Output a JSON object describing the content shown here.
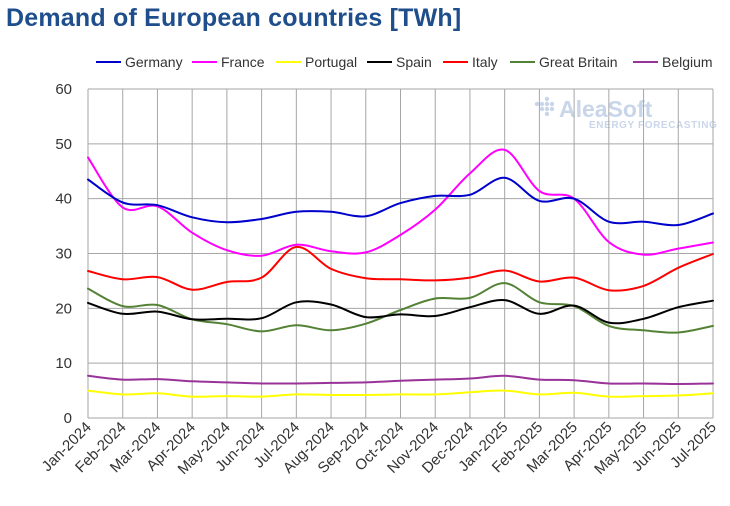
{
  "chart_data": {
    "type": "line",
    "title": "Demand of European countries [TWh]",
    "xlabel": "",
    "ylabel": "",
    "ylim": [
      0,
      60
    ],
    "yticks": [
      0,
      10,
      20,
      30,
      40,
      50,
      60
    ],
    "grid": true,
    "legend_position": "top",
    "categories": [
      "Jan-2024",
      "Feb-2024",
      "Mar-2024",
      "Apr-2024",
      "May-2024",
      "Jun-2024",
      "Jul-2024",
      "Aug-2024",
      "Sep-2024",
      "Oct-2024",
      "Nov-2024",
      "Dec-2024",
      "Jan-2025",
      "Feb-2025",
      "Mar-2025",
      "Apr-2025",
      "May-2025",
      "Jun-2025",
      "Jul-2025"
    ],
    "series": [
      {
        "name": "Germany",
        "color": "#0000cc",
        "values": [
          43.5,
          39.3,
          38.8,
          36.6,
          35.7,
          36.3,
          37.6,
          37.6,
          36.8,
          39.2,
          40.5,
          40.7,
          43.8,
          39.6,
          40.0,
          35.8,
          35.8,
          35.2,
          37.3
        ]
      },
      {
        "name": "France",
        "color": "#ff00ff",
        "values": [
          47.5,
          38.4,
          38.6,
          33.8,
          30.6,
          29.6,
          31.6,
          30.4,
          30.2,
          33.4,
          38.0,
          44.6,
          48.9,
          41.4,
          40.0,
          32.1,
          29.8,
          30.9,
          32.0
        ]
      },
      {
        "name": "Portugal",
        "color": "#ffff00",
        "values": [
          5.0,
          4.3,
          4.5,
          3.9,
          4.0,
          3.9,
          4.3,
          4.2,
          4.2,
          4.3,
          4.3,
          4.7,
          5.0,
          4.3,
          4.6,
          3.9,
          4.0,
          4.1,
          4.5
        ]
      },
      {
        "name": "Spain",
        "color": "#000000",
        "values": [
          21.0,
          19.0,
          19.4,
          18.0,
          18.1,
          18.2,
          21.1,
          20.7,
          18.4,
          18.9,
          18.6,
          20.2,
          21.5,
          19.0,
          20.5,
          17.4,
          18.1,
          20.2,
          21.4
        ]
      },
      {
        "name": "Italy",
        "color": "#ff0000",
        "values": [
          26.8,
          25.3,
          25.7,
          23.4,
          24.8,
          25.6,
          31.2,
          27.2,
          25.5,
          25.3,
          25.1,
          25.6,
          26.9,
          24.9,
          25.6,
          23.3,
          24.1,
          27.4,
          29.9
        ]
      },
      {
        "name": "Great Britain",
        "color": "#548235",
        "values": [
          23.6,
          20.4,
          20.6,
          18.0,
          17.1,
          15.8,
          16.9,
          16.0,
          17.2,
          19.7,
          21.8,
          21.9,
          24.6,
          21.1,
          20.4,
          16.8,
          16.0,
          15.6,
          16.8
        ]
      },
      {
        "name": "Belgium",
        "color": "#993399",
        "values": [
          7.7,
          7.0,
          7.1,
          6.7,
          6.5,
          6.3,
          6.3,
          6.4,
          6.5,
          6.8,
          7.0,
          7.2,
          7.7,
          7.0,
          6.9,
          6.3,
          6.3,
          6.2,
          6.3
        ]
      }
    ]
  },
  "watermark": {
    "brand": "AleaSoft",
    "tagline": "ENERGY FORECASTING"
  }
}
